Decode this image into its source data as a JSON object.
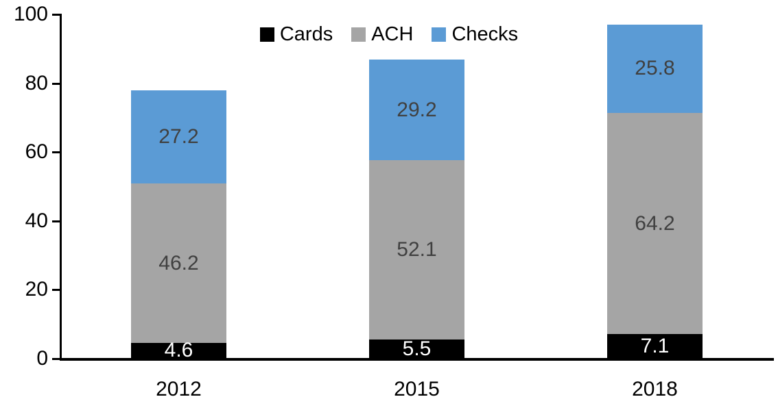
{
  "chart_data": {
    "type": "bar",
    "stacked": true,
    "title": "",
    "categories": [
      "2012",
      "2015",
      "2018"
    ],
    "series": [
      {
        "name": "Cards",
        "color": "#000000",
        "label_color": "#ffffff",
        "values": [
          4.6,
          5.5,
          7.1
        ]
      },
      {
        "name": "ACH",
        "color": "#a5a5a5",
        "label_color": "#404040",
        "values": [
          46.2,
          52.1,
          64.2
        ]
      },
      {
        "name": "Checks",
        "color": "#5b9bd5",
        "label_color": "#404040",
        "values": [
          27.2,
          29.2,
          25.8
        ]
      }
    ],
    "totals": [
      78.0,
      86.8,
      97.1
    ],
    "ylim": [
      0,
      100
    ],
    "yticks": [
      0,
      20,
      40,
      60,
      80,
      100
    ],
    "xlabel": "",
    "ylabel": "",
    "grid": false,
    "legend_position": "top-center",
    "axis_color": "#000000",
    "tick_label_color": "#000000"
  }
}
